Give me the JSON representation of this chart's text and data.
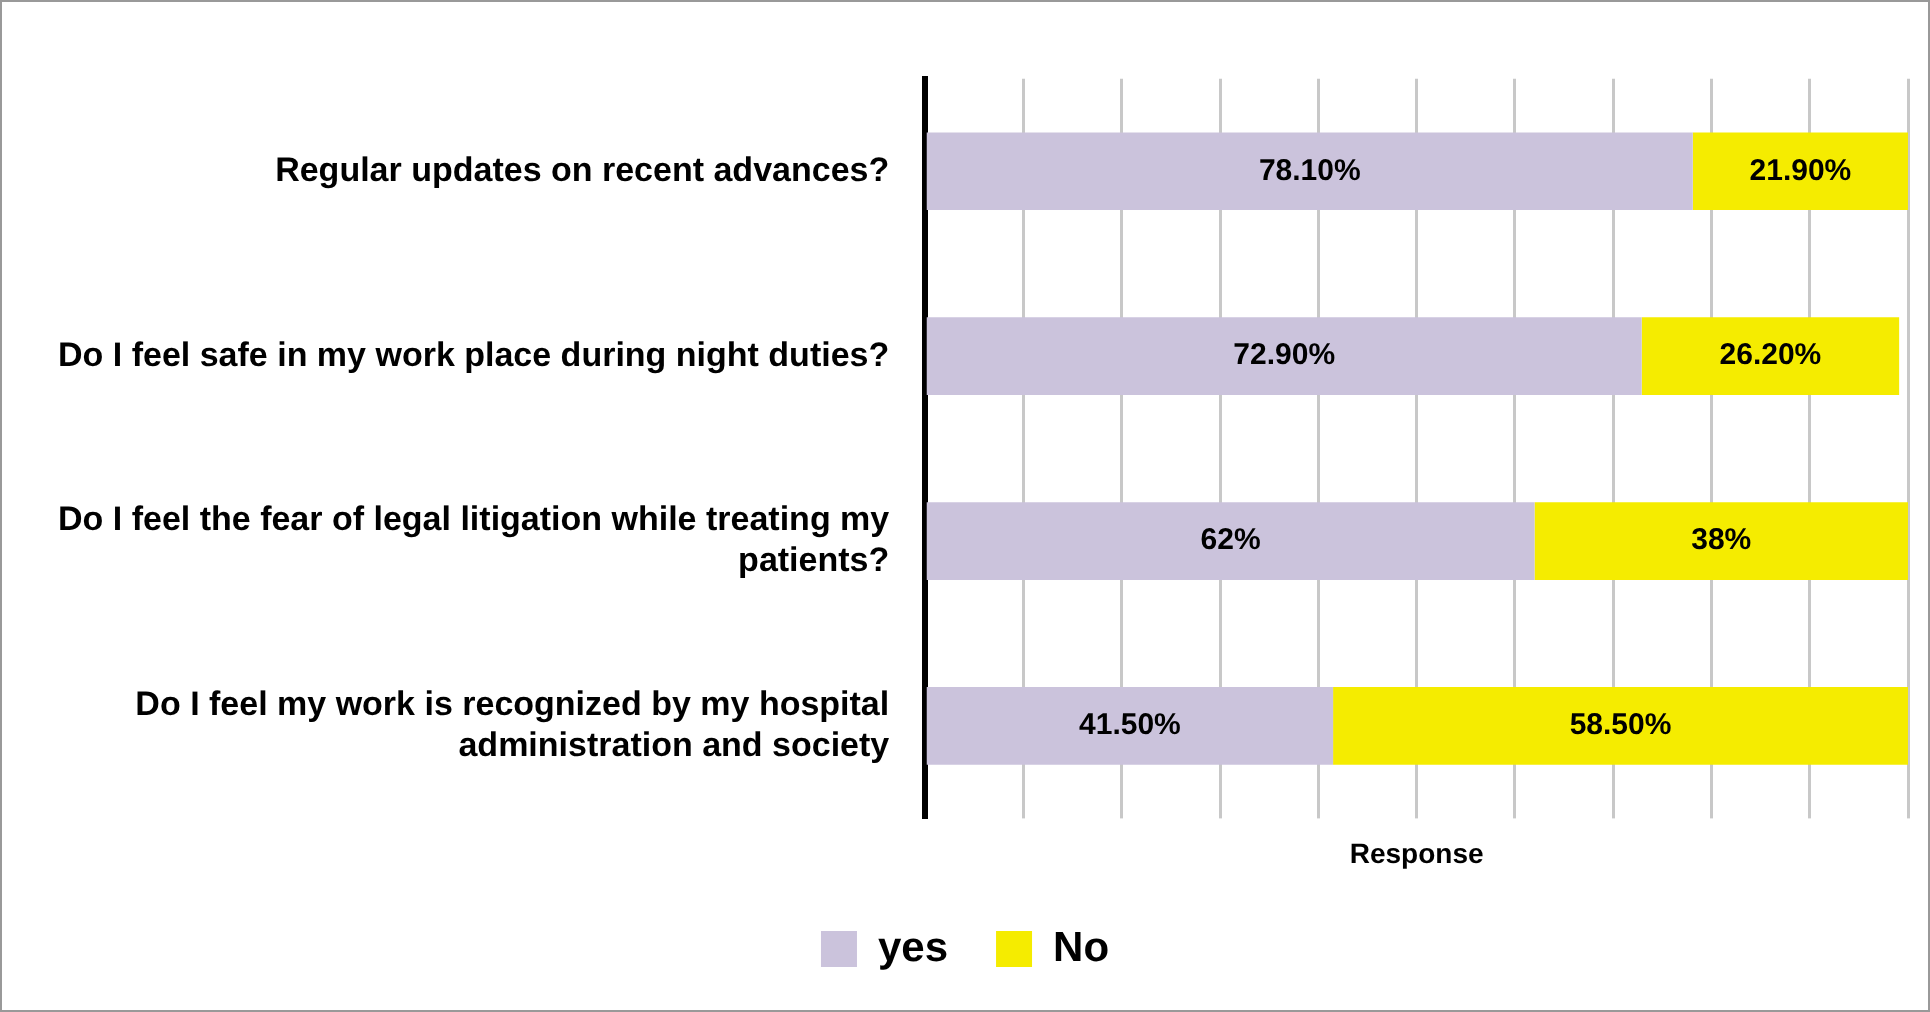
{
  "chart_data": {
    "type": "bar",
    "orientation": "horizontal",
    "stacked": true,
    "categories": [
      "Regular updates on recent advances?",
      "Do I feel safe in my work place during night duties?",
      "Do I feel the fear of legal litigation while treating my patients?",
      "Do I feel my work is recognized by my hospital administration and society"
    ],
    "series": [
      {
        "name": "yes",
        "color": "#cbc3dc",
        "values": [
          78.1,
          72.9,
          62,
          41.5
        ],
        "value_labels": [
          "78.10%",
          "72.90%",
          "62%",
          "41.50%"
        ]
      },
      {
        "name": "No",
        "color": "#f5ec00",
        "values": [
          21.9,
          26.2,
          38,
          58.5
        ],
        "value_labels": [
          "21.90%",
          "26.20%",
          "38%",
          "58.50%"
        ]
      }
    ],
    "xlabel": "Response",
    "xlim": [
      0,
      100
    ],
    "xticks": [
      {
        "value": 0,
        "label": null
      },
      {
        "value": 10,
        "label": null
      },
      {
        "value": 20,
        "label": null
      },
      {
        "value": 30,
        "label": null
      },
      {
        "value": 40,
        "label": null
      },
      {
        "value": 50,
        "label": null
      },
      {
        "value": 60,
        "label": null
      },
      {
        "value": 70,
        "label": null
      },
      {
        "value": 80,
        "label": null
      },
      {
        "value": 90,
        "label": null
      },
      {
        "value": 100,
        "label": null
      }
    ],
    "grid": "x",
    "tick_labels": "y",
    "legend": "bottom"
  }
}
